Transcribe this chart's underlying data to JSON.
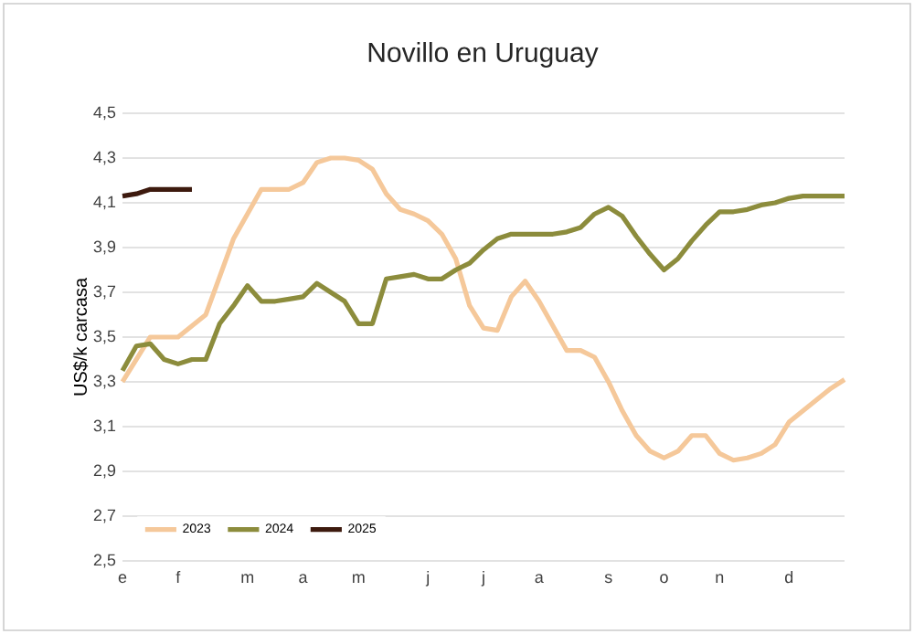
{
  "chart_data": {
    "type": "line",
    "title": "Novillo en Uruguay",
    "ylabel": "US$/k carcasa",
    "categories": [
      "e",
      null,
      null,
      null,
      "f",
      null,
      null,
      null,
      null,
      "m",
      null,
      null,
      null,
      "a",
      null,
      null,
      null,
      "m",
      null,
      null,
      null,
      null,
      "j",
      null,
      null,
      null,
      "j",
      null,
      null,
      null,
      "a",
      null,
      null,
      null,
      null,
      "s",
      null,
      null,
      null,
      "o",
      null,
      null,
      null,
      "n",
      null,
      null,
      null,
      null,
      "d",
      null,
      null,
      null,
      null
    ],
    "ylim": [
      2.5,
      4.5
    ],
    "yticks": [
      {
        "value": 2.5,
        "label": "2,5"
      },
      {
        "value": 2.7,
        "label": "2,7"
      },
      {
        "value": 2.9,
        "label": "2,9"
      },
      {
        "value": 3.1,
        "label": "3,1"
      },
      {
        "value": 3.3,
        "label": "3,3"
      },
      {
        "value": 3.5,
        "label": "3,5"
      },
      {
        "value": 3.7,
        "label": "3,7"
      },
      {
        "value": 3.9,
        "label": "3,9"
      },
      {
        "value": 4.1,
        "label": "4,1"
      },
      {
        "value": 4.3,
        "label": "4,3"
      },
      {
        "value": 4.5,
        "label": "4,5"
      }
    ],
    "grid": "y",
    "legend": "bottom left",
    "marker": "none",
    "series": [
      {
        "name": "2023",
        "color": "#f5c89a",
        "values": [
          3.3,
          3.4,
          3.5,
          3.5,
          3.5,
          3.55,
          3.6,
          3.77,
          3.94,
          4.05,
          4.16,
          4.16,
          4.16,
          4.19,
          4.28,
          4.3,
          4.3,
          4.29,
          4.25,
          4.14,
          4.07,
          4.05,
          4.02,
          3.96,
          3.85,
          3.64,
          3.54,
          3.53,
          3.68,
          3.75,
          3.66,
          3.55,
          3.44,
          3.44,
          3.41,
          3.3,
          3.17,
          3.06,
          2.99,
          2.96,
          2.99,
          3.06,
          3.06,
          2.98,
          2.95,
          2.96,
          2.98,
          3.02,
          3.12,
          3.17,
          3.22,
          3.27,
          3.31
        ]
      },
      {
        "name": "2024",
        "color": "#8c8c3c",
        "values": [
          3.35,
          3.46,
          3.47,
          3.4,
          3.38,
          3.4,
          3.4,
          3.56,
          3.64,
          3.73,
          3.66,
          3.66,
          3.67,
          3.68,
          3.74,
          3.7,
          3.66,
          3.56,
          3.56,
          3.76,
          3.77,
          3.78,
          3.76,
          3.76,
          3.8,
          3.83,
          3.89,
          3.94,
          3.96,
          3.96,
          3.96,
          3.96,
          3.97,
          3.99,
          4.05,
          4.08,
          4.04,
          3.95,
          3.87,
          3.8,
          3.85,
          3.93,
          4.0,
          4.06,
          4.06,
          4.07,
          4.09,
          4.1,
          4.12,
          4.13,
          4.13,
          4.13,
          4.13
        ]
      },
      {
        "name": "2025",
        "color": "#3d1a0e",
        "values": [
          4.13,
          4.14,
          4.16,
          4.16,
          4.16,
          4.16,
          null,
          null,
          null,
          null,
          null,
          null,
          null,
          null,
          null,
          null,
          null,
          null,
          null,
          null,
          null,
          null,
          null,
          null,
          null,
          null,
          null,
          null,
          null,
          null,
          null,
          null,
          null,
          null,
          null,
          null,
          null,
          null,
          null,
          null,
          null,
          null,
          null,
          null,
          null,
          null,
          null,
          null,
          null,
          null,
          null,
          null,
          null
        ]
      }
    ]
  }
}
